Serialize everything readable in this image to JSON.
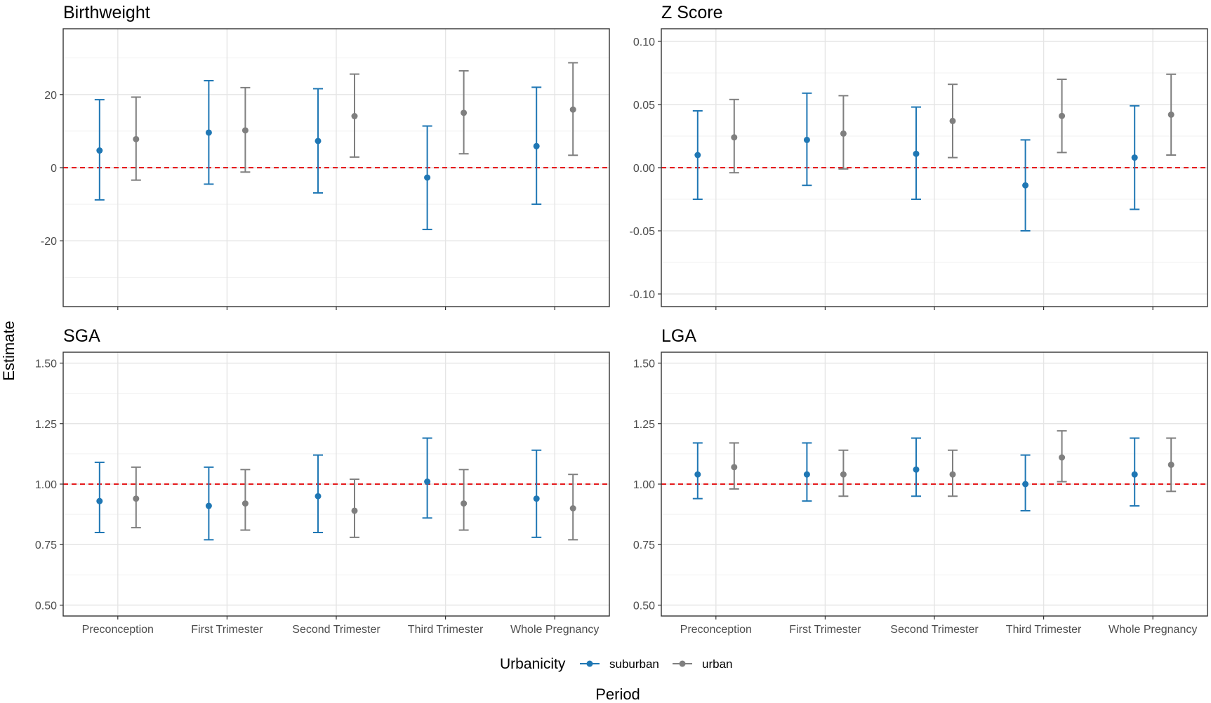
{
  "colors": {
    "suburban": "#1f77b4",
    "urban": "#7f7f7f",
    "reference": "#e41a1c"
  },
  "axis": {
    "xlabel": "Period",
    "ylabel": "Estimate"
  },
  "legend": {
    "title": "Urbanicity",
    "items": [
      "suburban",
      "urban"
    ],
    "placement": "bottom"
  },
  "chart_data": [
    {
      "type": "errorbar",
      "title": "Birthweight",
      "categories": [
        "Preconception",
        "First Trimester",
        "Second Trimester",
        "Third Trimester",
        "Whole Pregnancy"
      ],
      "ylim": [
        -38,
        38
      ],
      "yticks": [
        -20,
        0,
        20
      ],
      "ytick_labels": [
        "-20",
        "0",
        "20"
      ],
      "reference_line": 0,
      "show_x_tick_labels": false,
      "series": [
        {
          "name": "suburban",
          "estimate": [
            4.7,
            9.6,
            7.3,
            -2.7,
            5.9
          ],
          "lower": [
            -8.8,
            -4.5,
            -6.9,
            -16.9,
            -10.0
          ],
          "upper": [
            18.6,
            23.8,
            21.6,
            11.4,
            22.0
          ]
        },
        {
          "name": "urban",
          "estimate": [
            7.8,
            10.2,
            14.1,
            15.0,
            15.9
          ],
          "lower": [
            -3.4,
            -1.2,
            2.9,
            3.8,
            3.4
          ],
          "upper": [
            19.3,
            21.9,
            25.6,
            26.5,
            28.7
          ]
        }
      ]
    },
    {
      "type": "errorbar",
      "title": "Z Score",
      "categories": [
        "Preconception",
        "First Trimester",
        "Second Trimester",
        "Third Trimester",
        "Whole Pregnancy"
      ],
      "ylim": [
        -0.11,
        0.11
      ],
      "yticks": [
        -0.1,
        -0.05,
        0.0,
        0.05,
        0.1
      ],
      "ytick_labels": [
        "-0.10",
        "-0.05",
        "0.00",
        "0.05",
        "0.10"
      ],
      "reference_line": 0,
      "show_x_tick_labels": false,
      "series": [
        {
          "name": "suburban",
          "estimate": [
            0.01,
            0.022,
            0.011,
            -0.014,
            0.008
          ],
          "lower": [
            -0.025,
            -0.014,
            -0.025,
            -0.05,
            -0.033
          ],
          "upper": [
            0.045,
            0.059,
            0.048,
            0.022,
            0.049
          ]
        },
        {
          "name": "urban",
          "estimate": [
            0.024,
            0.027,
            0.037,
            0.041,
            0.042
          ],
          "lower": [
            -0.004,
            -0.001,
            0.008,
            0.012,
            0.01
          ],
          "upper": [
            0.054,
            0.057,
            0.066,
            0.07,
            0.074
          ]
        }
      ]
    },
    {
      "type": "errorbar",
      "title": "SGA",
      "categories": [
        "Preconception",
        "First Trimester",
        "Second Trimester",
        "Third Trimester",
        "Whole Pregnancy"
      ],
      "ylim": [
        0.455,
        1.545
      ],
      "yticks": [
        0.5,
        0.75,
        1.0,
        1.25,
        1.5
      ],
      "ytick_labels": [
        "0.50",
        "0.75",
        "1.00",
        "1.25",
        "1.50"
      ],
      "reference_line": 1,
      "show_x_tick_labels": true,
      "series": [
        {
          "name": "suburban",
          "estimate": [
            0.93,
            0.91,
            0.95,
            1.01,
            0.94
          ],
          "lower": [
            0.8,
            0.77,
            0.8,
            0.86,
            0.78
          ],
          "upper": [
            1.09,
            1.07,
            1.12,
            1.19,
            1.14
          ]
        },
        {
          "name": "urban",
          "estimate": [
            0.94,
            0.92,
            0.89,
            0.92,
            0.9
          ],
          "lower": [
            0.82,
            0.81,
            0.78,
            0.81,
            0.77
          ],
          "upper": [
            1.07,
            1.06,
            1.02,
            1.06,
            1.04
          ]
        }
      ]
    },
    {
      "type": "errorbar",
      "title": "LGA",
      "categories": [
        "Preconception",
        "First Trimester",
        "Second Trimester",
        "Third Trimester",
        "Whole Pregnancy"
      ],
      "ylim": [
        0.455,
        1.545
      ],
      "yticks": [
        0.5,
        0.75,
        1.0,
        1.25,
        1.5
      ],
      "ytick_labels": [
        "0.50",
        "0.75",
        "1.00",
        "1.25",
        "1.50"
      ],
      "reference_line": 1,
      "show_x_tick_labels": true,
      "series": [
        {
          "name": "suburban",
          "estimate": [
            1.04,
            1.04,
            1.06,
            1.0,
            1.04
          ],
          "lower": [
            0.94,
            0.93,
            0.95,
            0.89,
            0.91
          ],
          "upper": [
            1.17,
            1.17,
            1.19,
            1.12,
            1.19
          ]
        },
        {
          "name": "urban",
          "estimate": [
            1.07,
            1.04,
            1.04,
            1.11,
            1.08
          ],
          "lower": [
            0.98,
            0.95,
            0.95,
            1.01,
            0.97
          ],
          "upper": [
            1.17,
            1.14,
            1.14,
            1.22,
            1.19
          ]
        }
      ]
    }
  ]
}
